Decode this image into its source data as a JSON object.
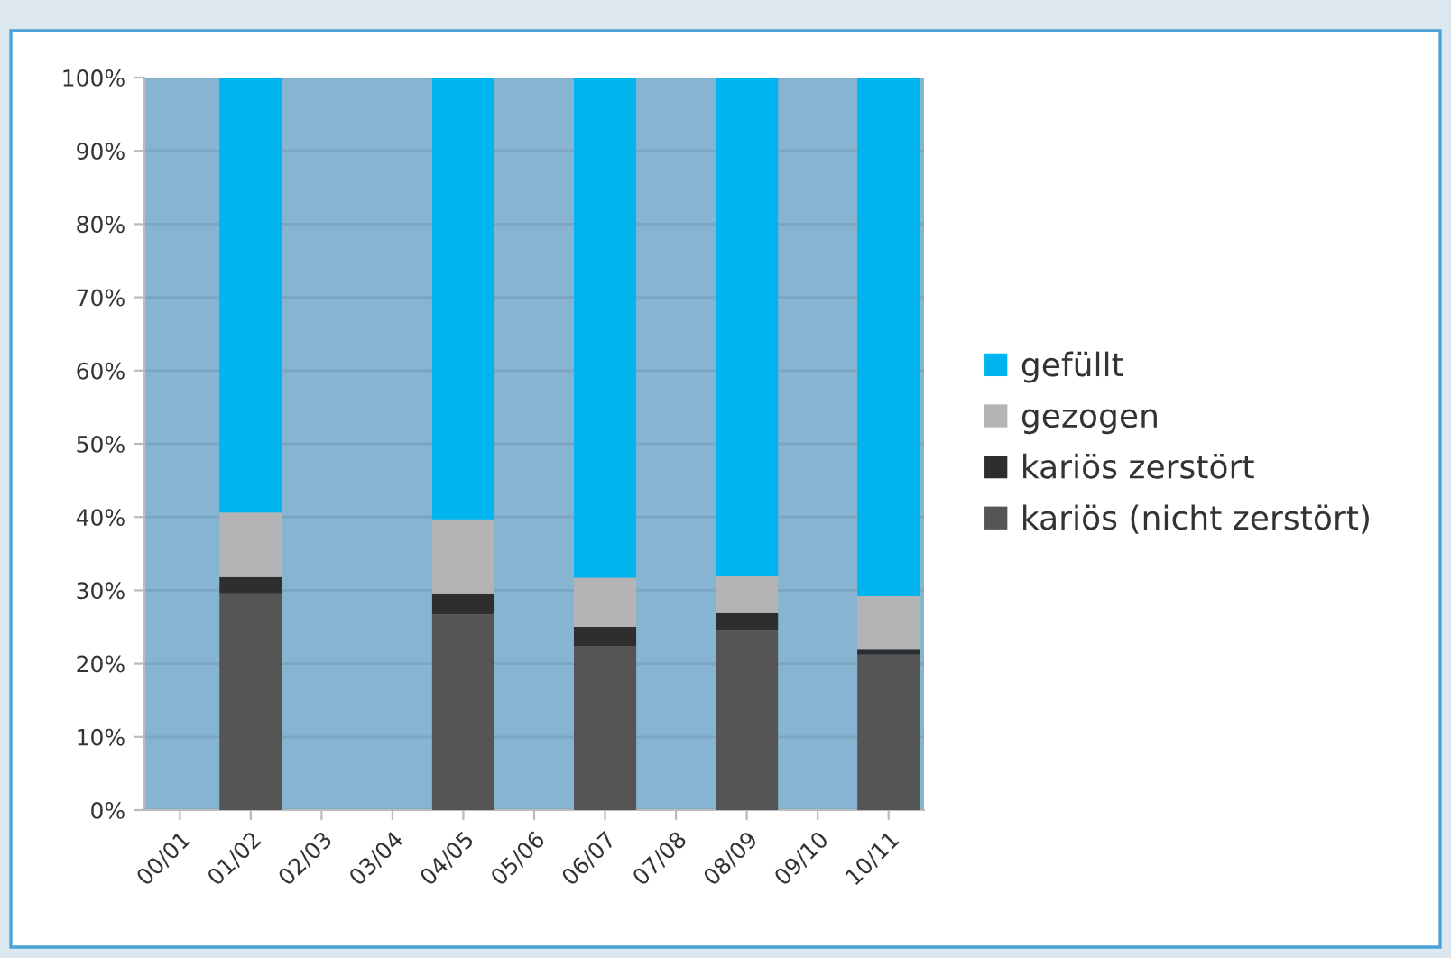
{
  "chart_data": {
    "type": "bar",
    "stacked": true,
    "categories": [
      "00/01",
      "01/02",
      "02/03",
      "03/04",
      "04/05",
      "05/06",
      "06/07",
      "07/08",
      "08/09",
      "09/10",
      "10/11"
    ],
    "series": [
      {
        "name": "kariös (nicht zerstört)",
        "color": "#555555",
        "values": [
          null,
          29.6,
          null,
          null,
          26.7,
          null,
          22.4,
          null,
          24.6,
          null,
          21.2
        ]
      },
      {
        "name": "kariös zerstört",
        "color": "#2e2e2e",
        "values": [
          null,
          2.2,
          null,
          null,
          2.9,
          null,
          2.6,
          null,
          2.4,
          null,
          0.7
        ]
      },
      {
        "name": "gezogen",
        "color": "#b4b4b6",
        "values": [
          null,
          8.8,
          null,
          null,
          10.1,
          null,
          6.7,
          null,
          4.9,
          null,
          7.3
        ]
      },
      {
        "name": "gefüllt",
        "color": "#00b4ef",
        "values": [
          null,
          59.4,
          null,
          null,
          60.3,
          null,
          68.3,
          null,
          68.1,
          null,
          70.8
        ]
      }
    ],
    "ylim": [
      0,
      100
    ],
    "yticks": [
      {
        "value": 0,
        "label": "0%"
      },
      {
        "value": 10,
        "label": "10%"
      },
      {
        "value": 20,
        "label": "20%"
      },
      {
        "value": 30,
        "label": "30%"
      },
      {
        "value": 40,
        "label": "40%"
      },
      {
        "value": 50,
        "label": "50%"
      },
      {
        "value": 60,
        "label": "60%"
      },
      {
        "value": 70,
        "label": "70%"
      },
      {
        "value": 80,
        "label": "80%"
      },
      {
        "value": 90,
        "label": "90%"
      },
      {
        "value": 100,
        "label": "100%"
      }
    ],
    "grid": "y",
    "legend": "right"
  }
}
